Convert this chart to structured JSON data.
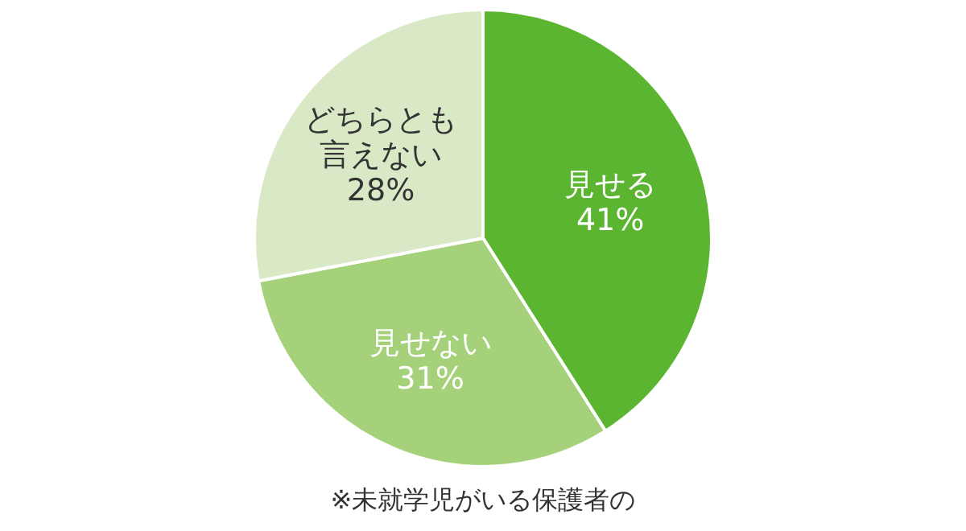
{
  "chart_data": {
    "type": "pie",
    "categories": [
      "見せる",
      "見せない",
      "どちらとも言えない"
    ],
    "values": [
      41,
      31,
      28
    ],
    "colors": [
      "#5cb531",
      "#a5d17a",
      "#d9e9c6"
    ],
    "value_labels": [
      "41%",
      "31%",
      "28%"
    ],
    "annotations": [
      "※未就学児がいる保護者の"
    ]
  }
}
